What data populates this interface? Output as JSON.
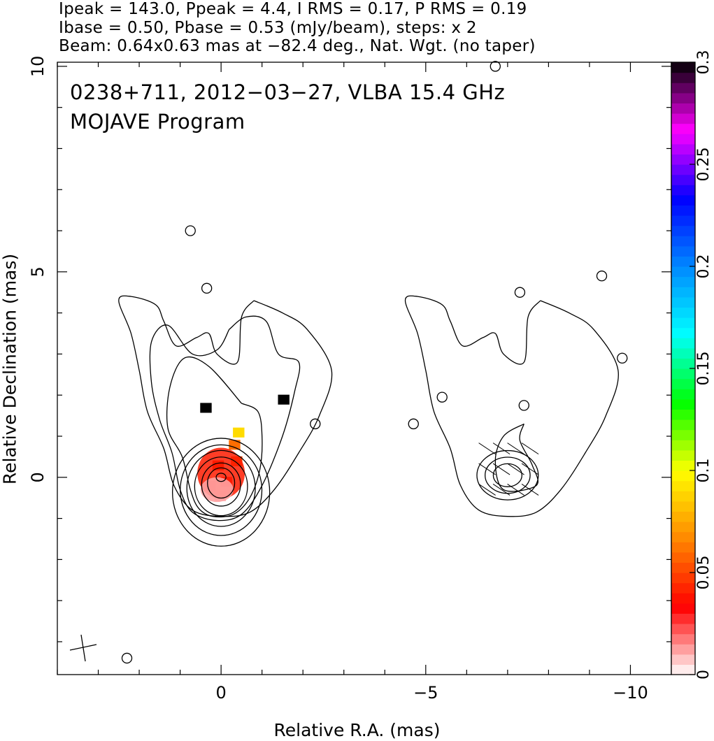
{
  "header": {
    "line1": "Ipeak = 143.0, Ppeak = 4.4, I RMS = 0.17, P RMS = 0.19",
    "line2": "Ibase = 0.50, Pbase = 0.53 (mJy/beam), steps: x 2",
    "line3": "Beam: 0.64x0.63 mas at −82.4 deg., Nat. Wgt. (no taper)"
  },
  "plot_title": {
    "line1": "0238+711, 2012−03−27, VLBA 15.4 GHz",
    "line2": "MOJAVE Program"
  },
  "chart_data": {
    "type": "contour-map",
    "xlabel": "Relative R.A. (mas)",
    "ylabel": "Relative Declination (mas)",
    "xlim": [
      4.0,
      -11.0
    ],
    "ylim": [
      -4.8,
      10.1
    ],
    "x_ticks": [
      0,
      -5,
      -10
    ],
    "x_tick_labels": [
      "0",
      "−5",
      "−10"
    ],
    "y_ticks": [
      0,
      5,
      10
    ],
    "y_tick_labels": [
      "0",
      "5",
      "10"
    ],
    "colorbar": {
      "range": [
        0,
        0.3
      ],
      "ticks": [
        0,
        0.05,
        0.1,
        0.15,
        0.2,
        0.25,
        0.3
      ],
      "tick_labels": [
        "0",
        "0.05",
        "0.1",
        "0.15",
        "0.2",
        "0.25",
        "0.3"
      ],
      "colors": [
        "#ffffff",
        "#ff0000",
        "#ff8800",
        "#ffff00",
        "#00ff00",
        "#00ffff",
        "#0088ff",
        "#0000ff",
        "#ff00ff",
        "#000000"
      ]
    },
    "left_map": {
      "core": [
        0.0,
        0.0
      ],
      "contour_radii_mas": [
        0.35,
        0.5,
        0.68,
        0.88,
        1.05,
        1.25
      ],
      "outer_contours": [
        [
          [
            -0.5,
            1.8
          ],
          [
            -0.9,
            1.6
          ],
          [
            -1.0,
            1.0
          ],
          [
            -0.95,
            0.2
          ],
          [
            -0.7,
            -0.5
          ],
          [
            -0.3,
            -0.9
          ],
          [
            0.2,
            -0.95
          ],
          [
            0.55,
            -0.75
          ],
          [
            0.75,
            -0.3
          ],
          [
            0.95,
            0.5
          ],
          [
            1.3,
            1.2
          ],
          [
            1.25,
            2.2
          ],
          [
            0.9,
            2.9
          ],
          [
            0.3,
            2.7
          ],
          [
            -0.5,
            1.8
          ]
        ],
        [
          [
            -0.2,
            3.6
          ],
          [
            -0.6,
            3.9
          ],
          [
            -1.1,
            3.8
          ],
          [
            -1.4,
            3.0
          ],
          [
            -1.9,
            2.8
          ],
          [
            -1.8,
            2.1
          ],
          [
            -1.5,
            1.0
          ],
          [
            -1.0,
            -0.2
          ],
          [
            -0.5,
            -0.9
          ],
          [
            0.1,
            -1.05
          ],
          [
            0.7,
            -0.85
          ],
          [
            1.0,
            -0.3
          ],
          [
            1.2,
            0.6
          ],
          [
            1.5,
            1.4
          ],
          [
            1.7,
            2.3
          ],
          [
            1.7,
            3.3
          ],
          [
            1.3,
            3.7
          ],
          [
            0.7,
            3.0
          ],
          [
            0.1,
            3.1
          ],
          [
            -0.2,
            3.6
          ]
        ],
        [
          [
            -0.8,
            4.3
          ],
          [
            -1.5,
            4.0
          ],
          [
            -2.1,
            3.6
          ],
          [
            -2.7,
            2.6
          ],
          [
            -2.4,
            1.5
          ],
          [
            -1.9,
            0.6
          ],
          [
            -1.3,
            -0.3
          ],
          [
            -0.7,
            -0.85
          ],
          [
            0.0,
            -0.95
          ],
          [
            0.7,
            -0.8
          ],
          [
            1.15,
            -0.2
          ],
          [
            1.4,
            0.7
          ],
          [
            1.8,
            1.6
          ],
          [
            2.0,
            2.6
          ],
          [
            2.2,
            3.5
          ],
          [
            2.5,
            4.3
          ],
          [
            2.2,
            4.4
          ],
          [
            1.6,
            4.2
          ],
          [
            1.4,
            3.8
          ],
          [
            1.1,
            3.2
          ],
          [
            0.6,
            3.4
          ],
          [
            0.3,
            3.5
          ],
          [
            0.1,
            3.0
          ],
          [
            -0.4,
            2.8
          ],
          [
            -0.5,
            3.9
          ],
          [
            -0.8,
            4.3
          ]
        ]
      ],
      "islands": [
        [
          -2.3,
          1.3
        ],
        [
          0.75,
          6.0
        ],
        [
          0.35,
          4.6
        ],
        [
          2.3,
          -4.4
        ]
      ],
      "pol_pixels": [
        [
          -0.4,
          1.1,
          0.09
        ],
        [
          -0.3,
          0.8,
          0.06
        ],
        [
          -0.35,
          0.4,
          0.05
        ],
        [
          0.1,
          0.3,
          0.04
        ],
        [
          -0.1,
          -0.1,
          0.03
        ],
        [
          0.3,
          -0.2,
          0.02
        ],
        [
          0.05,
          -0.45,
          0.01
        ],
        [
          -1.5,
          1.9,
          0.3
        ],
        [
          0.4,
          1.7,
          0.3
        ]
      ]
    },
    "right_map": {
      "offset_ra": -7.0,
      "islands": [
        [
          -4.7,
          1.3
        ],
        [
          -7.3,
          4.5
        ],
        [
          -9.3,
          4.9
        ],
        [
          -9.8,
          2.9
        ],
        [
          -6.7,
          10.0
        ],
        [
          -5.4,
          1.95
        ],
        [
          -7.4,
          1.75
        ]
      ],
      "evpa_count": 12
    },
    "grid": false,
    "legend": "none"
  }
}
